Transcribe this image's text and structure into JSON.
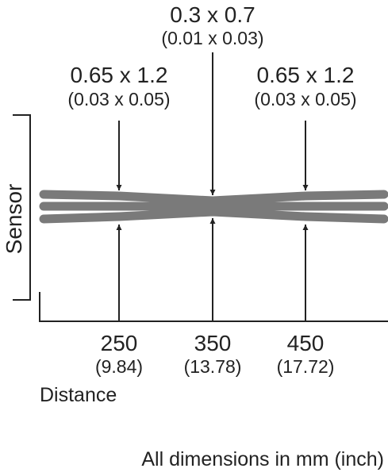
{
  "spots": [
    {
      "size": "0.65 x 1.2",
      "size_inch": "(0.03 x 0.05)"
    },
    {
      "size": "0.3 x 0.7",
      "size_inch": "(0.01 x 0.03)"
    },
    {
      "size": "0.65 x 1.2",
      "size_inch": "(0.03 x 0.05)"
    }
  ],
  "distances": [
    {
      "mm": "250",
      "inch": "(9.84)"
    },
    {
      "mm": "350",
      "inch": "(13.78)"
    },
    {
      "mm": "450",
      "inch": "(17.72)"
    }
  ],
  "sensor_label": "Sensor",
  "axis_label": "Distance",
  "footnote": "All dimensions in mm (inch)"
}
